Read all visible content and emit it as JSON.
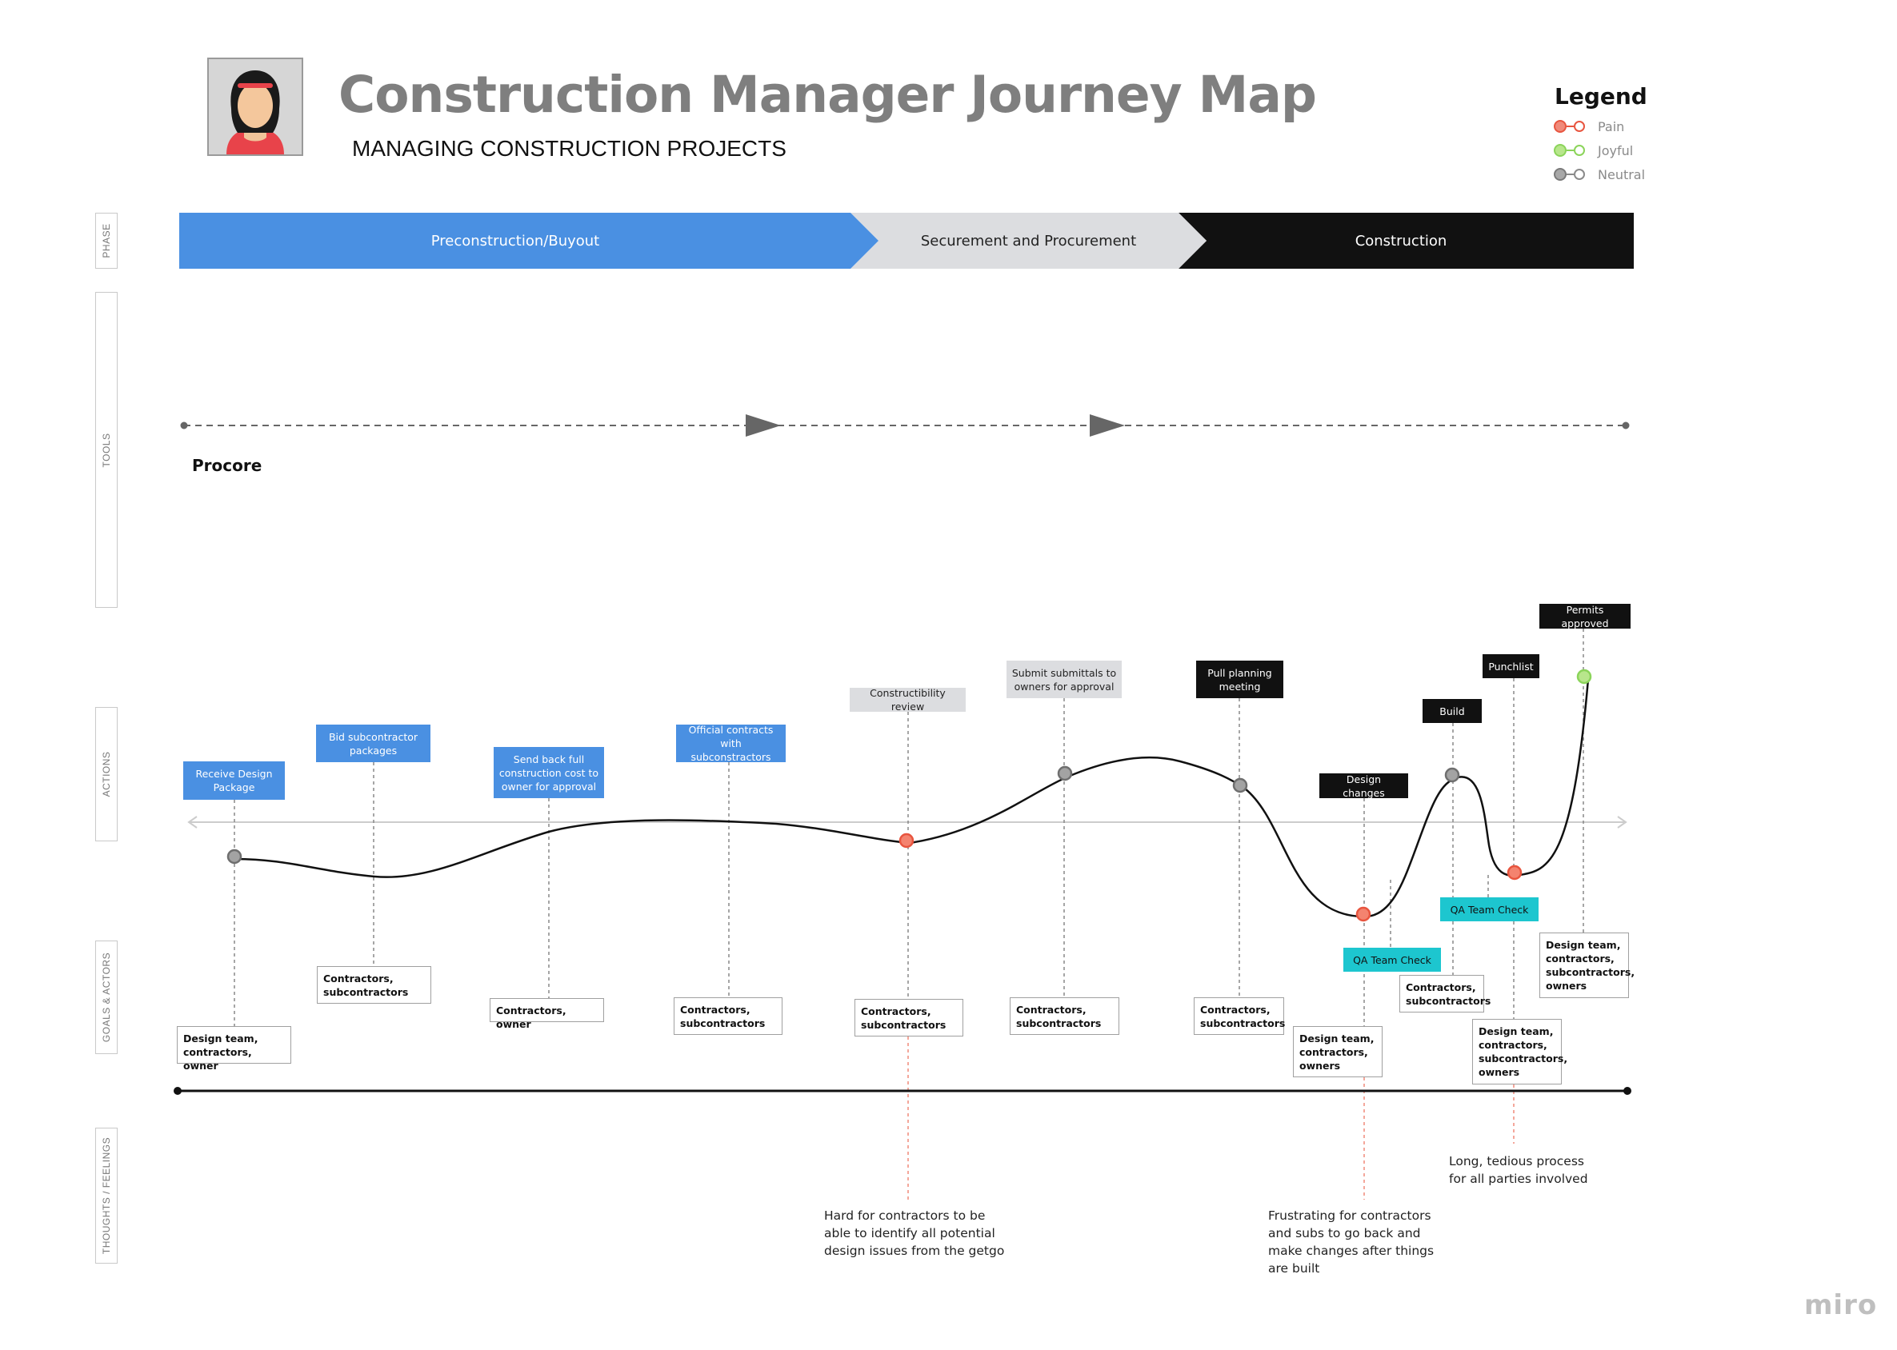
{
  "header": {
    "title": "Construction Manager Journey Map",
    "subtitle": "MANAGING CONSTRUCTION PROJECTS",
    "avatar_icon": "persona-avatar-icon"
  },
  "legend": {
    "title": "Legend",
    "items": [
      {
        "label": "Pain",
        "color": "#e8553f"
      },
      {
        "label": "Joyful",
        "color": "#8bd45a"
      },
      {
        "label": "Neutral",
        "color": "#8a8a8a"
      }
    ]
  },
  "rows": {
    "phase": "PHASE",
    "tools": "TOOLS",
    "actions": "ACTIONS",
    "goals": "GOALS & ACTORS",
    "thoughts": "THOUGHTS / FEELINGS"
  },
  "phases": [
    {
      "label": "Preconstruction/Buyout",
      "color": "#4a90e2",
      "text_color": "#ffffff"
    },
    {
      "label": "Securement and Procurement",
      "color": "#dcdde0",
      "text_color": "#222222"
    },
    {
      "label": "Construction",
      "color": "#111111",
      "text_color": "#ffffff"
    }
  ],
  "tools": {
    "label": "Procore"
  },
  "actions": [
    {
      "label": "Receive Design Package",
      "style": "blue"
    },
    {
      "label": "Bid subcontractor packages",
      "style": "blue"
    },
    {
      "label": "Send back full construction cost to owner for approval",
      "style": "blue"
    },
    {
      "label": "Official contracts with subconstractors",
      "style": "blue"
    },
    {
      "label": "Constructibility review",
      "style": "grey"
    },
    {
      "label": "Submit submittals to owners for approval",
      "style": "grey"
    },
    {
      "label": "Pull planning meeting",
      "style": "black"
    },
    {
      "label": "Design changes",
      "style": "black"
    },
    {
      "label": "QA Team Check",
      "style": "teal"
    },
    {
      "label": "Build",
      "style": "black"
    },
    {
      "label": "QA Team Check",
      "style": "teal"
    },
    {
      "label": "Punchlist",
      "style": "black"
    },
    {
      "label": "Permits approved",
      "style": "black"
    }
  ],
  "emotion_points": [
    {
      "action": "Receive Design Package",
      "emotion": "Neutral"
    },
    {
      "action": "Constructibility review",
      "emotion": "Pain"
    },
    {
      "action": "Submit submittals to owners for approval",
      "emotion": "Neutral"
    },
    {
      "action": "Pull planning meeting",
      "emotion": "Neutral"
    },
    {
      "action": "Design changes",
      "emotion": "Pain"
    },
    {
      "action": "Build",
      "emotion": "Neutral"
    },
    {
      "action": "Punchlist",
      "emotion": "Pain"
    },
    {
      "action": "Permits approved",
      "emotion": "Joyful"
    }
  ],
  "goals": [
    {
      "text": "Design team,\ncontractors, owner"
    },
    {
      "text": "Contractors,\nsubcontractors"
    },
    {
      "text": "Contractors, owner"
    },
    {
      "text": "Contractors,\nsubcontractors"
    },
    {
      "text": "Contractors,\nsubcontractors"
    },
    {
      "text": "Contractors,\nsubcontractors"
    },
    {
      "text": "Contractors,\nsubcontractors"
    },
    {
      "text": "Design team,\ncontractors,\nowners"
    },
    {
      "text": "Contractors,\nsubcontractors"
    },
    {
      "text": "Design team,\ncontractors,\nsubcontractors,\nowners"
    },
    {
      "text": "Design team,\ncontractors,\nsubcontractors,\nowners"
    }
  ],
  "thoughts": [
    {
      "text": "Hard for contractors to be\nable to identify all potential\ndesign issues from the getgo"
    },
    {
      "text": "Frustrating for contractors\nand subs to go back and\nmake changes after things\nare built"
    },
    {
      "text": "Long, tedious process\nfor all parties involved"
    }
  ],
  "watermark": "miro"
}
